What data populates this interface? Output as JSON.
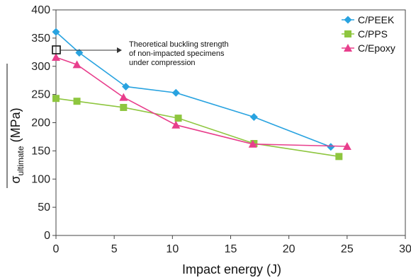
{
  "chart_data": {
    "type": "line",
    "xlabel": "Impact energy (J)",
    "ylabel": {
      "prefix": "σ",
      "subscript": "ultimate",
      "suffix": " (MPa)"
    },
    "xlim": [
      0,
      30
    ],
    "ylim": [
      0,
      400
    ],
    "xticks": [
      0,
      5,
      10,
      15,
      20,
      25,
      30
    ],
    "yticks": [
      0,
      50,
      100,
      150,
      200,
      250,
      300,
      350,
      400
    ],
    "grid": false,
    "legend_position": "top-right",
    "series": [
      {
        "name": "C/PEEK",
        "color": "#29a3e0",
        "marker": "diamond",
        "x": [
          0,
          2,
          6,
          10.3,
          17,
          23.6
        ],
        "y": [
          361,
          324,
          264,
          253,
          210,
          157
        ]
      },
      {
        "name": "C/PPS",
        "color": "#8ec63f",
        "marker": "square",
        "x": [
          0,
          1.8,
          5.8,
          10.5,
          17,
          24.3
        ],
        "y": [
          243,
          238,
          227,
          208,
          163,
          140
        ]
      },
      {
        "name": "C/Epoxy",
        "color": "#e83e8c",
        "marker": "triangle",
        "x": [
          0,
          1.8,
          5.8,
          10.3,
          16.9,
          25
        ],
        "y": [
          316,
          303,
          245,
          196,
          162,
          158
        ]
      }
    ],
    "annotation": {
      "lines": [
        "Theoretical buckling strength",
        "of non-impacted specimens",
        "under compression"
      ],
      "x": 0,
      "y": 323
    }
  }
}
